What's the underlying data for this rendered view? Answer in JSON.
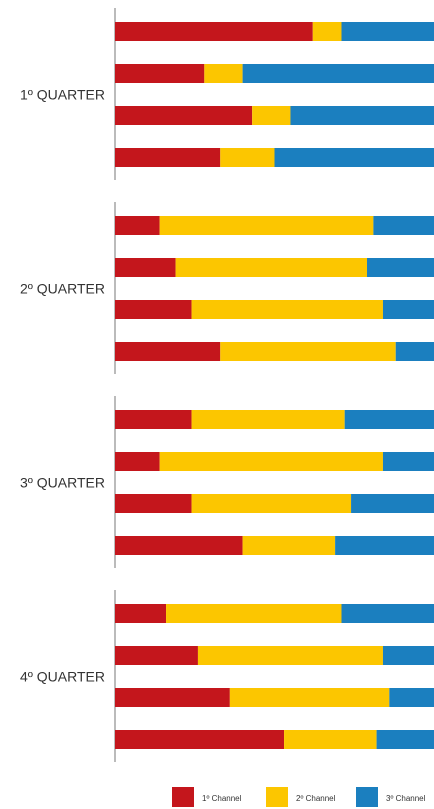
{
  "chart_data": {
    "type": "bar",
    "orientation": "horizontal",
    "stacked": "percent",
    "groups": [
      {
        "label": "1º QUARTER",
        "bars": [
          {
            "values": [
              62,
              9,
              29
            ]
          },
          {
            "values": [
              28,
              12,
              60
            ]
          },
          {
            "values": [
              43,
              12,
              45
            ]
          },
          {
            "values": [
              33,
              17,
              50
            ]
          }
        ]
      },
      {
        "label": "2º QUARTER",
        "bars": [
          {
            "values": [
              14,
              67,
              19
            ]
          },
          {
            "values": [
              19,
              60,
              21
            ]
          },
          {
            "values": [
              24,
              60,
              16
            ]
          },
          {
            "values": [
              33,
              55,
              12
            ]
          }
        ]
      },
      {
        "label": "3º QUARTER",
        "bars": [
          {
            "values": [
              24,
              48,
              28
            ]
          },
          {
            "values": [
              14,
              70,
              16
            ]
          },
          {
            "values": [
              24,
              50,
              26
            ]
          },
          {
            "values": [
              40,
              29,
              31
            ]
          }
        ]
      },
      {
        "label": "4º QUARTER",
        "bars": [
          {
            "values": [
              16,
              55,
              29
            ]
          },
          {
            "values": [
              26,
              58,
              16
            ]
          },
          {
            "values": [
              36,
              50,
              14
            ]
          },
          {
            "values": [
              53,
              29,
              18
            ]
          }
        ]
      }
    ],
    "series": [
      {
        "name": "1º Channel",
        "color": "#c4161c"
      },
      {
        "name": "2º Channel",
        "color": "#fcc600"
      },
      {
        "name": "3º Channel",
        "color": "#1b7fbf"
      }
    ],
    "legend_position": "bottom-right",
    "grid": false
  }
}
